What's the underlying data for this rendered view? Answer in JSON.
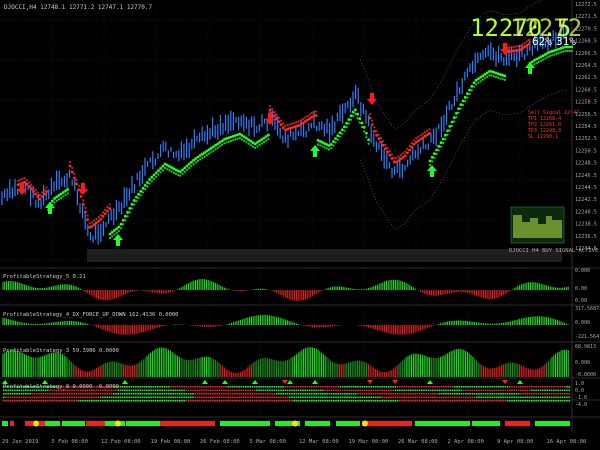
{
  "main": {
    "header": "DJOCCI,H4  12748.1 12771.2 12747.1 12770.7",
    "big_price": "12270.5",
    "overlay_text": "12272",
    "pct_text": "62%",
    "pct_text2": "31%",
    "price_ticks": [
      "12272.5",
      "12271.5",
      "12270.5",
      "12268.5",
      "12266.5",
      "12264.5",
      "12262.5",
      "12260.5",
      "12258.5",
      "12256.5",
      "12254.5",
      "12252.5",
      "12250.5",
      "12248.5",
      "12246.5",
      "12244.5",
      "12242.5",
      "12240.5",
      "12238.5",
      "12236.5",
      "12234.5"
    ],
    "info_lines": [
      "Sell Signal 12:47",
      "TP1 12268.4",
      "TP2 12261.0",
      "TP3 12248.3",
      "SL 12290.1"
    ],
    "mini_bottom_text": "DJOCCI H4 BUY SIGNAL ACTIVE"
  },
  "panels": [
    {
      "id": "p1",
      "label": "ProfitableStrategy_5 0.21",
      "ticks": [
        "0.000",
        "0.00",
        "0.00"
      ]
    },
    {
      "id": "p2",
      "label": "ProfitableStrategy_4_DX_FORCE_UP_DOWN 162.4136 0.0000",
      "ticks": [
        "317.5687",
        "0.000",
        "-221.5647"
      ]
    },
    {
      "id": "p3",
      "label": "ProfitableStrategy_3 59.3986 0.0000",
      "ticks": [
        "68.9813",
        "0.000",
        "-0.0000"
      ]
    },
    {
      "id": "p4",
      "label": "ProfitableStrategy_8 0.0000 -6.0000",
      "ticks": [
        "1.0",
        "0.0",
        "-1.0",
        "-4.0"
      ]
    }
  ],
  "x_labels": [
    "29 Jan 2019",
    "5 Feb 08:00",
    "12 Feb 08:00",
    "19 Feb 08:00",
    "26 Feb 08:00",
    "5 Mar 08:00",
    "12 Mar 08:00",
    "19 Mar 08:00",
    "26 Mar 08:00",
    "2 Apr 08:00",
    "9 Apr 08:00",
    "16 Apr 08:00"
  ],
  "colors": {
    "bull": "#1e90ff",
    "bear": "#1e90ff",
    "sell": "#ff0000",
    "buy": "#00ff00",
    "band_red": "#ff2020",
    "band_green": "#20ff20",
    "grid": "#1a3a1a"
  }
}
